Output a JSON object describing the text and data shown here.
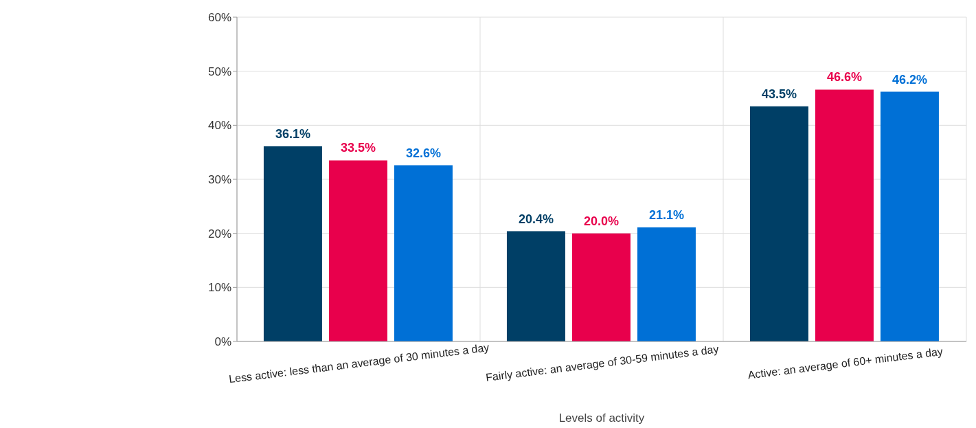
{
  "chart_data": {
    "type": "bar",
    "xlabel": "Levels of activity",
    "categories": [
      "Less active: less than an average of 30 minutes a day",
      "Fairly active: an average of 30-59 minutes a day",
      "Active: an average of 60+ minutes a day"
    ],
    "series": [
      {
        "color": "#003f66",
        "values": [
          36.1,
          20.4,
          43.5
        ],
        "value_labels": [
          "36.1%",
          "20.4%",
          "43.5%"
        ]
      },
      {
        "color": "#e8004c",
        "values": [
          33.5,
          20.0,
          46.6
        ],
        "value_labels": [
          "33.5%",
          "20.0%",
          "46.6%"
        ]
      },
      {
        "color": "#0070d6",
        "values": [
          32.6,
          21.1,
          46.2
        ],
        "value_labels": [
          "32.6%",
          "21.1%",
          "46.2%"
        ]
      }
    ],
    "ylim": [
      0,
      60
    ],
    "yticks": [
      {
        "value": 0,
        "label": "0%"
      },
      {
        "value": 10,
        "label": "10%"
      },
      {
        "value": 20,
        "label": "20%"
      },
      {
        "value": 30,
        "label": "30%"
      },
      {
        "value": 40,
        "label": "40%"
      },
      {
        "value": 50,
        "label": "50%"
      },
      {
        "value": 60,
        "label": "60%"
      }
    ],
    "grid": true
  }
}
